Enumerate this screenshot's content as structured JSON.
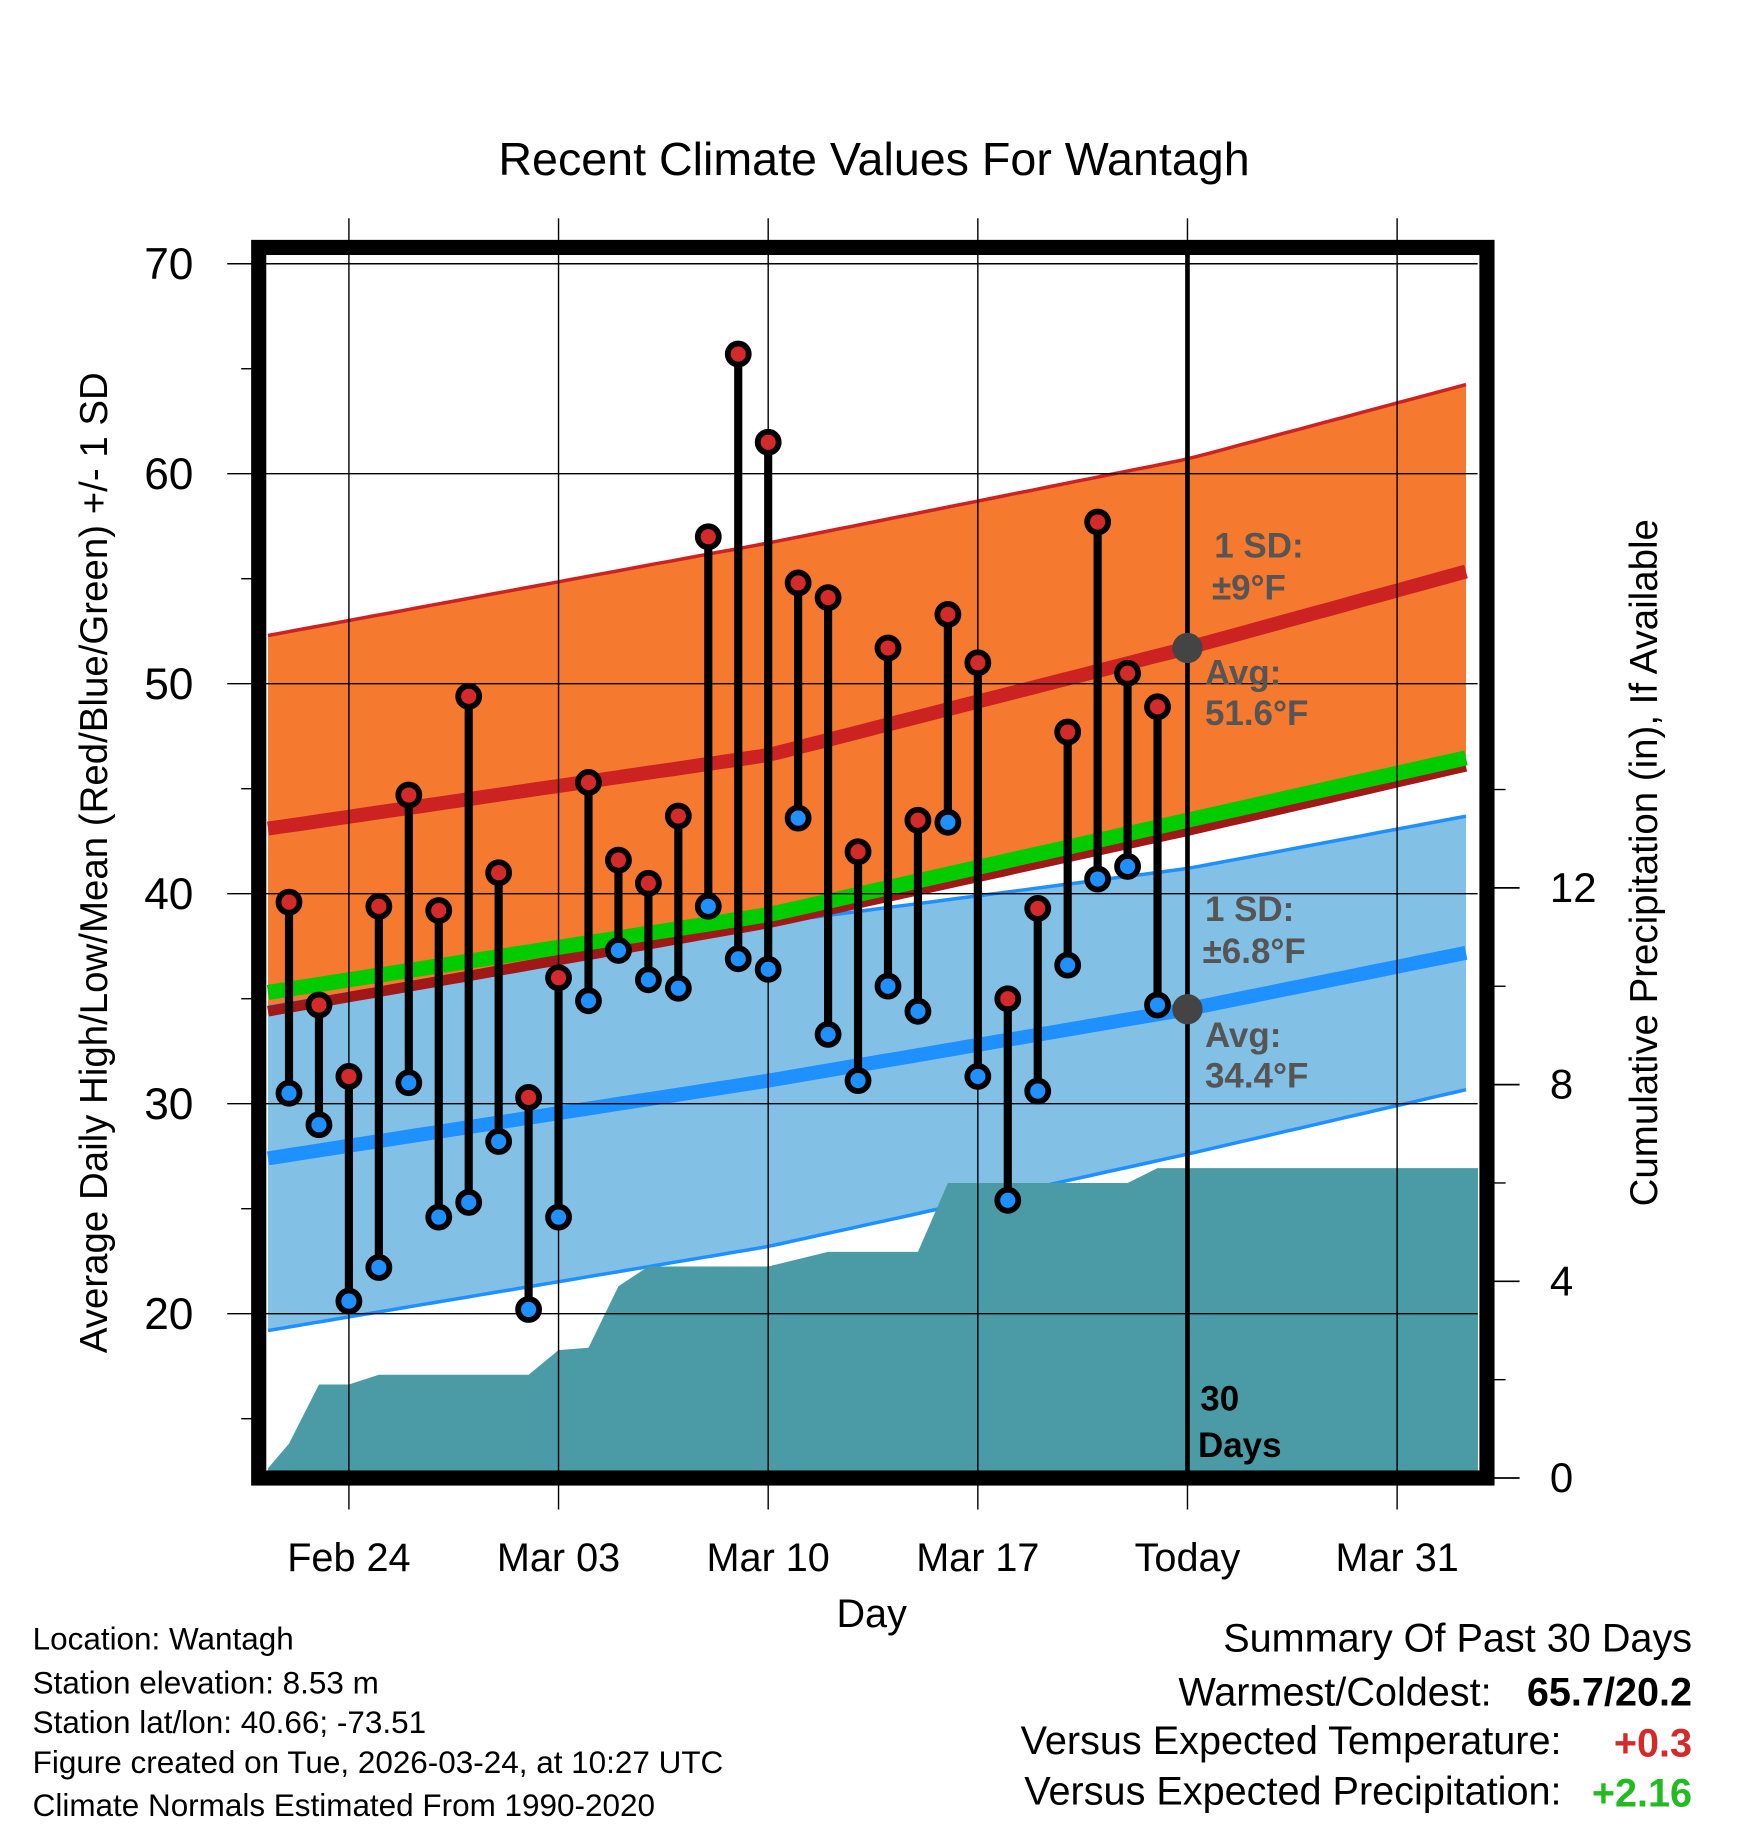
{
  "chart_data": {
    "type": "line",
    "title": "Recent Climate Values For Wantagh",
    "xlabel": "Day",
    "ylabel": "Average Daily High/Low/Mean (Red/Blue/Green) +/- 1 SD",
    "y2label": "Cumulative Precipitation (in), If Available",
    "ylim": [
      12.2,
      70.8
    ],
    "y2lim": [
      0,
      14
    ],
    "yticks": [
      "70",
      "60",
      "50",
      "40",
      "30",
      "20"
    ],
    "y2ticks": [
      "12",
      "8",
      "4",
      "0"
    ],
    "xticks": [
      "Feb 24",
      "Mar 03",
      "Mar 10",
      "Mar 17",
      "Today",
      "Mar 31"
    ],
    "xtick_days": [
      2,
      9,
      16,
      23,
      30,
      37
    ],
    "x_day0": "Feb 22",
    "xlim_days": [
      -0.7,
      39.7
    ],
    "today_day": 30,
    "grid": true,
    "series": [
      {
        "name": "Daily High",
        "color": "#d42a2a",
        "days_start": 0,
        "values": [
          39.6,
          34.7,
          31.3,
          39.4,
          44.7,
          39.2,
          49.4,
          41.0,
          30.3,
          36.0,
          45.3,
          41.6,
          40.5,
          43.7,
          57.0,
          65.7,
          61.5,
          54.8,
          54.1,
          42.0,
          51.7,
          43.5,
          53.3,
          51.0,
          35.0,
          39.3,
          47.7,
          57.7,
          50.5,
          48.9
        ]
      },
      {
        "name": "Daily Low",
        "color": "#1e90ff",
        "days_start": 0,
        "values": [
          30.5,
          29.0,
          20.6,
          22.2,
          31.0,
          24.6,
          25.3,
          28.2,
          20.2,
          24.6,
          34.9,
          37.3,
          35.9,
          35.5,
          39.4,
          36.9,
          36.4,
          43.6,
          33.3,
          31.1,
          35.6,
          34.4,
          43.4,
          31.3,
          25.4,
          30.6,
          36.6,
          40.7,
          41.3,
          34.7
        ]
      }
    ],
    "normals": {
      "days": [
        -0.7,
        16,
        30,
        39.7
      ],
      "high_upper": [
        52.3,
        56.7,
        60.7,
        64.4
      ],
      "high_avg": [
        43.1,
        46.6,
        51.7,
        55.5
      ],
      "high_lower": [
        34.4,
        38.6,
        43.0,
        46.2
      ],
      "mean": [
        35.3,
        39.0,
        43.5,
        46.6
      ],
      "low_upper": [
        34.6,
        38.6,
        41.2,
        43.8
      ],
      "low_avg": [
        27.4,
        31.1,
        34.5,
        37.3
      ],
      "low_lower": [
        19.2,
        23.2,
        27.6,
        30.8
      ]
    },
    "precip": {
      "days": [
        -0.7,
        0,
        1,
        2,
        3,
        8,
        9,
        10,
        11,
        12,
        16,
        18,
        21,
        22,
        28,
        29,
        39.7
      ],
      "values": [
        0.2,
        0.7,
        1.9,
        1.9,
        2.1,
        2.1,
        2.6,
        2.65,
        3.9,
        4.3,
        4.3,
        4.6,
        4.6,
        6.0,
        6.0,
        6.3,
        6.3
      ]
    },
    "annotations": {
      "high_sd_1": "1 SD:",
      "high_sd_2": "±9°F",
      "high_avg_1": "Avg:",
      "high_avg_2": "51.6°F",
      "low_sd_1": "1 SD:",
      "low_sd_2": "±6.8°F",
      "low_avg_1": "Avg:",
      "low_avg_2": "34.4°F",
      "days_1": "30",
      "days_2": "Days"
    },
    "colors": {
      "high_band": "#f5792e",
      "high_line": "#cc2222",
      "mean_line": "#00cc00",
      "low_band": "#82c0e6",
      "low_line": "#1e90ff",
      "precip": "#4a9ba5",
      "avg_dot": "#444444"
    }
  },
  "footer": {
    "location": "Location: Wantagh",
    "elevation": "Station elevation: 8.53 m",
    "latlon": "Station lat/lon: 40.66; -73.51",
    "created": "Figure created on Tue, 2026-03-24, at 10:27 UTC",
    "normals": "Climate Normals Estimated From 1990-2020"
  },
  "summary": {
    "title": "Summary Of Past 30 Days",
    "warm_label": "Warmest/Coldest:",
    "warm_value": "65.7/20.2",
    "temp_label": "Versus Expected Temperature:",
    "temp_value": "+0.3",
    "precip_label": "Versus Expected Precipitation:",
    "precip_value": "+2.16"
  }
}
